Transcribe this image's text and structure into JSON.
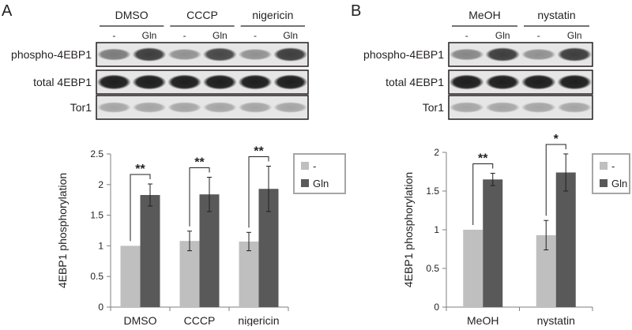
{
  "panels": [
    {
      "letter": "A",
      "blot": {
        "groups": [
          "DMSO",
          "CCCP",
          "nigericin"
        ],
        "lane_labels": [
          "-",
          "Gln",
          "-",
          "Gln",
          "-",
          "Gln"
        ],
        "rows": [
          {
            "label": "phospho-4EBP1",
            "intensity": [
              0.55,
              0.85,
              0.45,
              0.8,
              0.45,
              0.85
            ]
          },
          {
            "label": "total 4EBP1",
            "intensity": [
              1,
              1,
              1,
              1,
              1,
              1
            ]
          },
          {
            "label": "Tor1",
            "intensity": [
              0.35,
              0.35,
              0.35,
              0.35,
              0.35,
              0.35
            ]
          }
        ]
      }
    },
    {
      "letter": "B",
      "blot": {
        "groups": [
          "MeOH",
          "nystatin"
        ],
        "lane_labels": [
          "-",
          "Gln",
          "-",
          "Gln"
        ],
        "rows": [
          {
            "label": "phospho-4EBP1",
            "intensity": [
              0.5,
              0.85,
              0.45,
              0.85
            ]
          },
          {
            "label": "total 4EBP1",
            "intensity": [
              1,
              1,
              1,
              1
            ]
          },
          {
            "label": "Tor1",
            "intensity": [
              0.35,
              0.35,
              0.35,
              0.35
            ]
          }
        ]
      }
    }
  ],
  "colors": {
    "minus": "#bfbfbf",
    "gln": "#595959",
    "axis": "#7f7f7f",
    "text": "#231f20"
  },
  "chart_data": [
    {
      "type": "bar",
      "categories": [
        "DMSO",
        "CCCP",
        "nigericin"
      ],
      "series": [
        {
          "name": "-",
          "values": [
            1.0,
            1.08,
            1.07
          ],
          "errors": [
            0,
            0.16,
            0.15
          ]
        },
        {
          "name": "Gln",
          "values": [
            1.83,
            1.84,
            1.93
          ],
          "errors": [
            0.18,
            0.28,
            0.37
          ]
        }
      ],
      "significance": [
        "**",
        "**",
        "**"
      ],
      "ylabel": "4EBP1 phosphorylation",
      "ylim": [
        0,
        2.5
      ],
      "yticks": [
        "0",
        "0.5",
        "1",
        "1.5",
        "2",
        "2.5"
      ],
      "legend": "top-right",
      "grid": false
    },
    {
      "type": "bar",
      "categories": [
        "MeOH",
        "nystatin"
      ],
      "series": [
        {
          "name": "-",
          "values": [
            1.0,
            0.93
          ],
          "errors": [
            0,
            0.19
          ]
        },
        {
          "name": "Gln",
          "values": [
            1.65,
            1.74
          ],
          "errors": [
            0.08,
            0.24
          ]
        }
      ],
      "significance": [
        "**",
        "*"
      ],
      "ylabel": "4EBP1 phosphorylation",
      "ylim": [
        0,
        2
      ],
      "yticks": [
        "0",
        "0.5",
        "1",
        "1.5",
        "2"
      ],
      "legend": "top-right",
      "grid": false
    }
  ]
}
